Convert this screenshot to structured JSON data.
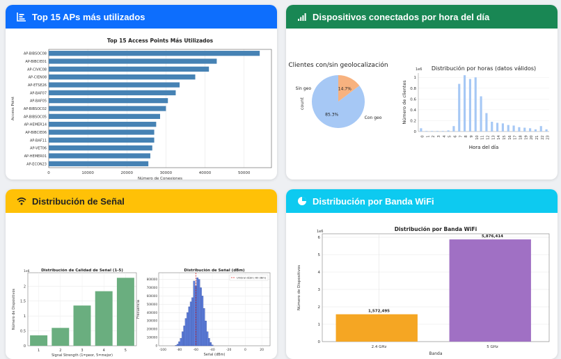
{
  "cards": {
    "top_aps": {
      "header": "Top 15 APs más utilizados",
      "color": "#0d6efd"
    },
    "hourly": {
      "header": "Dispositivos conectados por hora del día",
      "color": "#198754"
    },
    "signal": {
      "header": "Distribución de Señal",
      "color": "#ffc107"
    },
    "band": {
      "header": "Distribución por Banda WiFi",
      "color": "#0dcaf0"
    }
  },
  "chart_data": [
    {
      "id": "top_aps",
      "type": "bar",
      "orientation": "horizontal",
      "title": "Top 15 Access Points Más Utilizados",
      "xlabel": "Número de Conexiones",
      "ylabel": "Access Point",
      "categories": [
        "AP-BIBSOC08",
        "AP-BIBCIE01",
        "AP-CIVIC08",
        "AP-CIEN08",
        "AP-ETSE26",
        "AP-BAF07",
        "AP-BAF05",
        "AP-BIBSOC02",
        "AP-BIBSOC05",
        "AP-HEMER14",
        "AP-BIBCIE06",
        "AP-BAF11",
        "AP-VET06",
        "AP-HEMER01",
        "AP-ECON23"
      ],
      "values": [
        54000,
        43000,
        41000,
        37500,
        33500,
        32500,
        30500,
        30000,
        28500,
        27500,
        27000,
        27000,
        26500,
        26000,
        25500
      ],
      "xlim": [
        0,
        57000
      ],
      "xticks": [
        0,
        10000,
        20000,
        30000,
        40000,
        50000
      ],
      "color": "#4682b4"
    },
    {
      "id": "geo_pie",
      "type": "pie",
      "title": "Clientes con/sin geolocalización",
      "ylabel": "count",
      "labels": [
        "Sin geo",
        "Con geo"
      ],
      "values": [
        85.3,
        14.7
      ],
      "value_labels": [
        "85.3%",
        "14.7%"
      ],
      "colors": [
        "#a6c8f5",
        "#f7b27f"
      ]
    },
    {
      "id": "hours",
      "type": "bar",
      "title": "Distribución por horas (datos válidos)",
      "xlabel": "Hora del día",
      "ylabel": "Número de clientes",
      "exponent": "1e6",
      "categories": [
        "0",
        "1",
        "2",
        "3",
        "4",
        "5",
        "6",
        "7",
        "8",
        "9",
        "10",
        "11",
        "12",
        "13",
        "14",
        "15",
        "16",
        "17",
        "18",
        "19",
        "20",
        "21",
        "22",
        "23"
      ],
      "values": [
        0.06,
        0.01,
        0.01,
        0.01,
        0.01,
        0.02,
        0.1,
        0.88,
        1.04,
        0.97,
        1.0,
        0.65,
        0.34,
        0.18,
        0.16,
        0.15,
        0.12,
        0.11,
        0.08,
        0.07,
        0.06,
        0.04,
        0.1,
        0.04
      ],
      "ylim": [
        0,
        1.08
      ],
      "yticks": [
        0.0,
        0.2,
        0.4,
        0.6,
        0.8,
        1.0
      ],
      "color": "#a6c8f5"
    },
    {
      "id": "quality",
      "type": "bar",
      "title": "Distribución de Calidad de Señal (1-5)",
      "xlabel": "Signal Strength (1=peor, 5=mejor)",
      "ylabel": "Número de Dispositivos",
      "exponent": "1e6",
      "categories": [
        "1",
        "2",
        "3",
        "4",
        "5"
      ],
      "values": [
        0.35,
        0.6,
        1.35,
        1.83,
        2.28
      ],
      "ylim": [
        0,
        2.45
      ],
      "yticks": [
        0.0,
        0.5,
        1.0,
        1.5,
        2.0
      ],
      "color": "#6aae7f"
    },
    {
      "id": "dbm",
      "type": "bar",
      "title": "Distribución de Señal (dBm)",
      "xlabel": "Señal (dBm)",
      "ylabel": "Frecuencia",
      "legend": "Umbral débil (-60 dBm)",
      "x": [
        -84,
        -82,
        -80,
        -78,
        -76,
        -74,
        -72,
        -70,
        -68,
        -66,
        -64,
        -62,
        -60,
        -58,
        -56,
        -54,
        -52,
        -50,
        -48,
        -46,
        -44,
        -42,
        -40
      ],
      "values": [
        5000,
        20000,
        50000,
        90000,
        170000,
        240000,
        330000,
        400000,
        470000,
        530000,
        580000,
        780000,
        720000,
        820000,
        800000,
        700000,
        600000,
        450000,
        300000,
        170000,
        90000,
        40000,
        10000
      ],
      "xlim": [
        -105,
        30
      ],
      "xticks": [
        -100,
        -80,
        -60,
        -40,
        -20,
        0,
        20
      ],
      "ylim": [
        0,
        880000
      ],
      "yticks": [
        0,
        100000,
        200000,
        300000,
        400000,
        500000,
        600000,
        700000,
        800000
      ],
      "threshold": -60,
      "color": "#5e7fdb"
    },
    {
      "id": "band",
      "type": "bar",
      "title": "Distribución por Banda WiFi",
      "xlabel": "Banda",
      "ylabel": "Número de Dispositivos",
      "exponent": "1e6",
      "categories": [
        "2.4 GHz",
        "5 GHz"
      ],
      "values": [
        1572495,
        5876414
      ],
      "value_labels": [
        "1,572,495",
        "5,876,414"
      ],
      "ylim": [
        0,
        6200000
      ],
      "yticks": [
        0,
        1,
        2,
        3,
        4,
        5,
        6
      ],
      "colors": [
        "#f5a623",
        "#a070c4"
      ]
    }
  ]
}
